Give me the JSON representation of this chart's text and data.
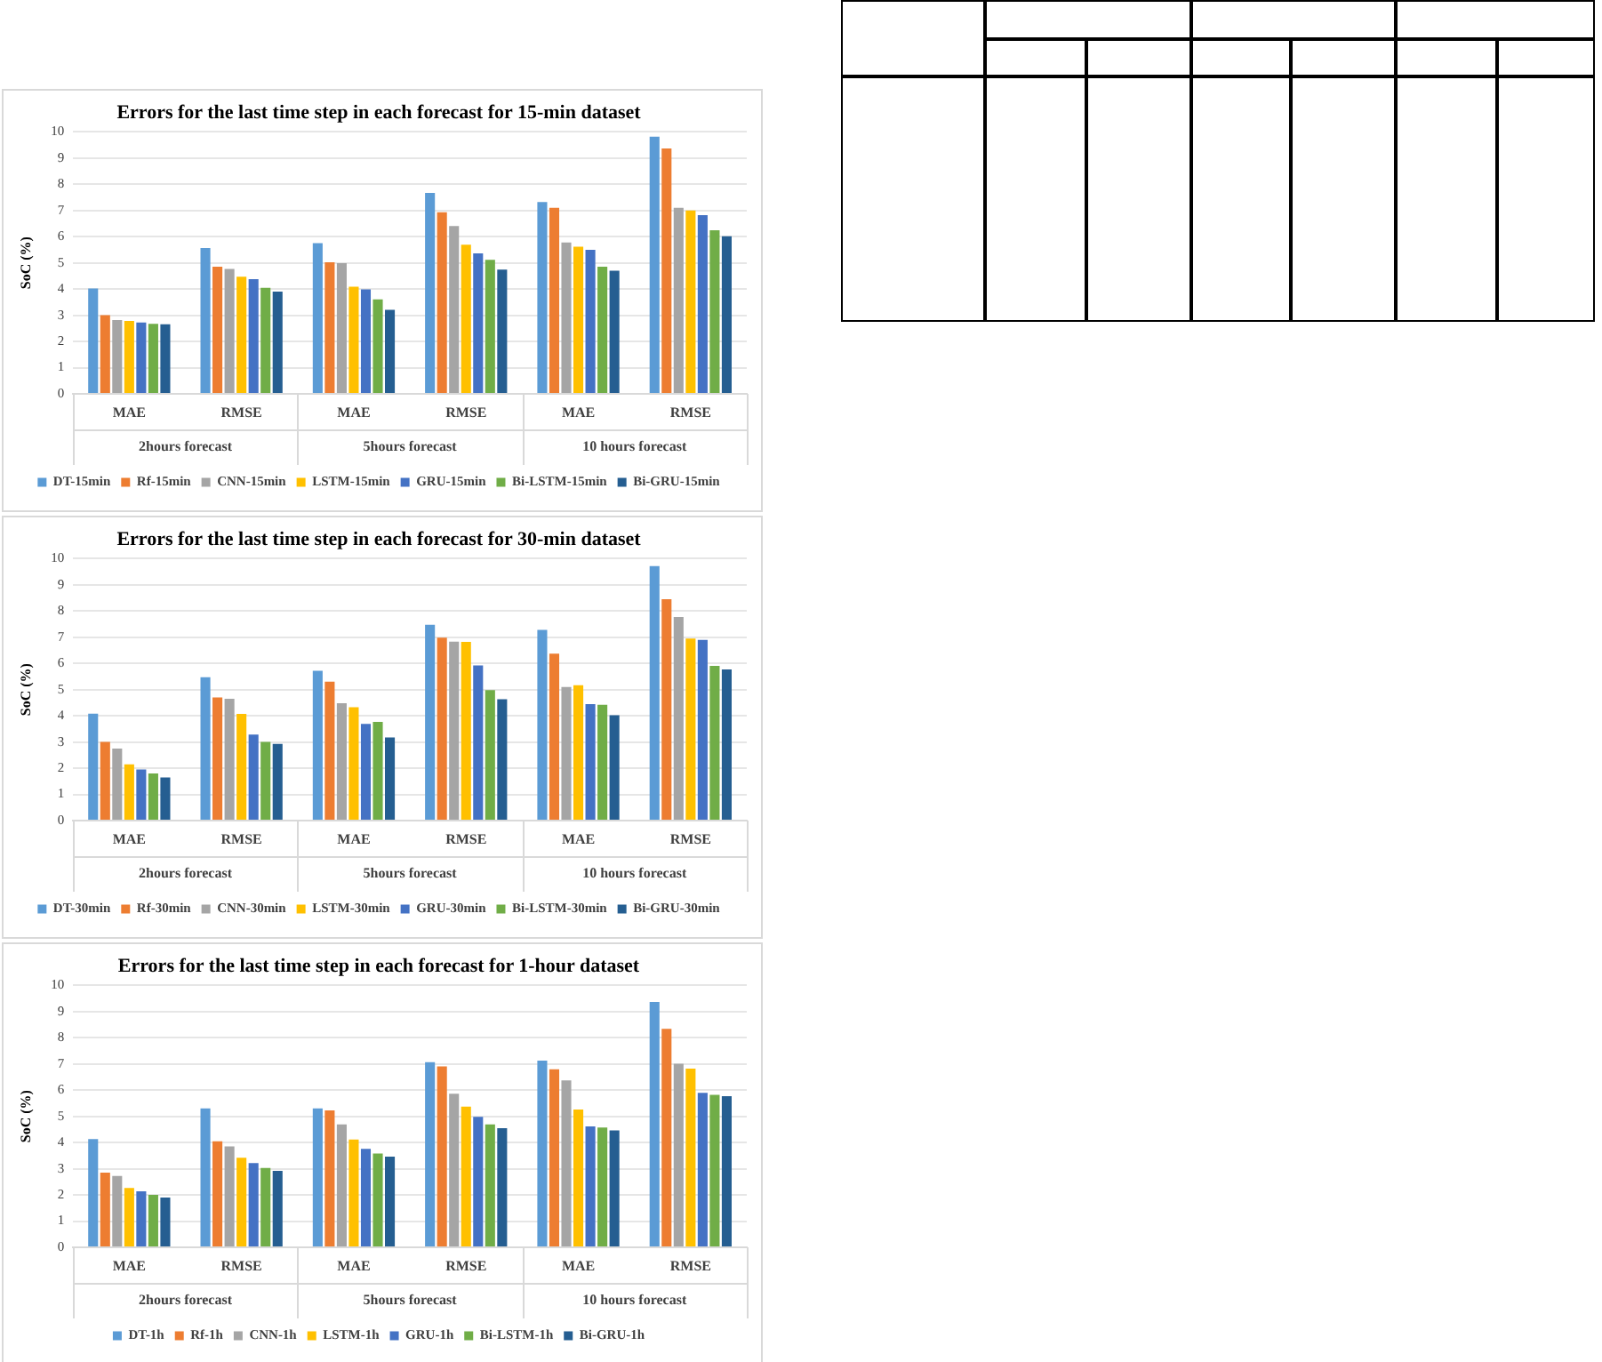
{
  "chart_data": [
    {
      "type": "bar",
      "title": "Errors for the last time step in each forecast for 15-min dataset",
      "ylabel": "SoC (%)",
      "categories": [
        "MAE",
        "RMSE",
        "MAE",
        "RMSE",
        "MAE",
        "RMSE"
      ],
      "annotations": [
        "2hours forecast",
        "5hours forecast",
        "10 hours forecast"
      ],
      "series": [
        {
          "name": "DT-15min",
          "color": "#5b9bd5",
          "values": [
            4.02,
            5.57,
            5.75,
            7.67,
            7.32,
            9.82
          ]
        },
        {
          "name": "Rf-15min",
          "color": "#ed7d31",
          "values": [
            3.0,
            4.85,
            5.02,
            6.93,
            7.1,
            9.37
          ]
        },
        {
          "name": "CNN-15min",
          "color": "#a5a5a5",
          "values": [
            2.82,
            4.77,
            4.99,
            6.41,
            5.78,
            7.1
          ]
        },
        {
          "name": "LSTM-15min",
          "color": "#ffc000",
          "values": [
            2.78,
            4.47,
            4.09,
            5.69,
            5.62,
            7.0
          ]
        },
        {
          "name": "GRU-15min",
          "color": "#4472c4",
          "values": [
            2.72,
            4.38,
            3.99,
            5.36,
            5.5,
            6.82
          ]
        },
        {
          "name": "Bi-LSTM-15min",
          "color": "#70ad47",
          "values": [
            2.67,
            4.05,
            3.61,
            5.12,
            4.85,
            6.25
          ]
        },
        {
          "name": "Bi-GRU-15min",
          "color": "#255e91",
          "values": [
            2.66,
            3.9,
            3.21,
            4.74,
            4.7,
            6.02
          ]
        }
      ],
      "ylim": [
        0,
        10
      ],
      "yticks": [
        0,
        1,
        2,
        3,
        4,
        5,
        6,
        7,
        8,
        9,
        10
      ],
      "grid": "y",
      "legend": "bottom"
    },
    {
      "type": "bar",
      "title": "Errors for the last time step in each forecast for 30-min dataset",
      "ylabel": "SoC (%)",
      "categories": [
        "MAE",
        "RMSE",
        "MAE",
        "RMSE",
        "MAE",
        "RMSE"
      ],
      "annotations": [
        "2hours forecast",
        "5hours forecast",
        "10 hours forecast"
      ],
      "series": [
        {
          "name": "DT-30min",
          "color": "#5b9bd5",
          "values": [
            4.08,
            5.47,
            5.72,
            7.48,
            7.28,
            9.72
          ]
        },
        {
          "name": "Rf-30min",
          "color": "#ed7d31",
          "values": [
            3.0,
            4.7,
            5.3,
            6.98,
            6.37,
            8.45
          ]
        },
        {
          "name": "CNN-30min",
          "color": "#a5a5a5",
          "values": [
            2.75,
            4.65,
            4.48,
            6.83,
            5.1,
            7.77
          ]
        },
        {
          "name": "LSTM-30min",
          "color": "#ffc000",
          "values": [
            2.15,
            4.07,
            4.33,
            6.82,
            5.17,
            6.95
          ]
        },
        {
          "name": "GRU-30min",
          "color": "#4472c4",
          "values": [
            1.95,
            3.28,
            3.69,
            5.92,
            4.45,
            6.9
          ]
        },
        {
          "name": "Bi-LSTM-30min",
          "color": "#70ad47",
          "values": [
            1.8,
            3.0,
            3.77,
            4.98,
            4.42,
            5.91
          ]
        },
        {
          "name": "Bi-GRU-30min",
          "color": "#255e91",
          "values": [
            1.65,
            2.93,
            3.17,
            4.63,
            4.02,
            5.77
          ]
        }
      ],
      "ylim": [
        0,
        10
      ],
      "yticks": [
        0,
        1,
        2,
        3,
        4,
        5,
        6,
        7,
        8,
        9,
        10
      ],
      "grid": "y",
      "legend": "bottom"
    },
    {
      "type": "bar",
      "title": "Errors for the last time step in each forecast for 1-hour dataset",
      "ylabel": "SoC (%)",
      "categories": [
        "MAE",
        "RMSE",
        "MAE",
        "RMSE",
        "MAE",
        "RMSE"
      ],
      "annotations": [
        "2hours forecast",
        "5hours forecast",
        "10 hours forecast"
      ],
      "series": [
        {
          "name": "DT-1h",
          "color": "#5b9bd5",
          "values": [
            4.13,
            5.3,
            5.3,
            7.07,
            7.13,
            9.37
          ]
        },
        {
          "name": "Rf-1h",
          "color": "#ed7d31",
          "values": [
            2.85,
            4.05,
            5.23,
            6.91,
            6.8,
            8.34
          ]
        },
        {
          "name": "CNN-1h",
          "color": "#a5a5a5",
          "values": [
            2.72,
            3.85,
            4.69,
            5.86,
            6.37,
            7.01
          ]
        },
        {
          "name": "LSTM-1h",
          "color": "#ffc000",
          "values": [
            2.27,
            3.42,
            4.12,
            5.37,
            5.26,
            6.82
          ]
        },
        {
          "name": "GRU-1h",
          "color": "#4472c4",
          "values": [
            2.14,
            3.22,
            3.76,
            4.98,
            4.62,
            5.9
          ]
        },
        {
          "name": "Bi-LSTM-1h",
          "color": "#70ad47",
          "values": [
            2.0,
            3.03,
            3.58,
            4.69,
            4.57,
            5.82
          ]
        },
        {
          "name": "Bi-GRU-1h",
          "color": "#255e91",
          "values": [
            1.9,
            2.92,
            3.46,
            4.55,
            4.46,
            5.77
          ]
        }
      ],
      "ylim": [
        0,
        10
      ],
      "yticks": [
        0,
        1,
        2,
        3,
        4,
        5,
        6,
        7,
        8,
        9,
        10
      ],
      "grid": "y",
      "legend": "bottom"
    }
  ]
}
